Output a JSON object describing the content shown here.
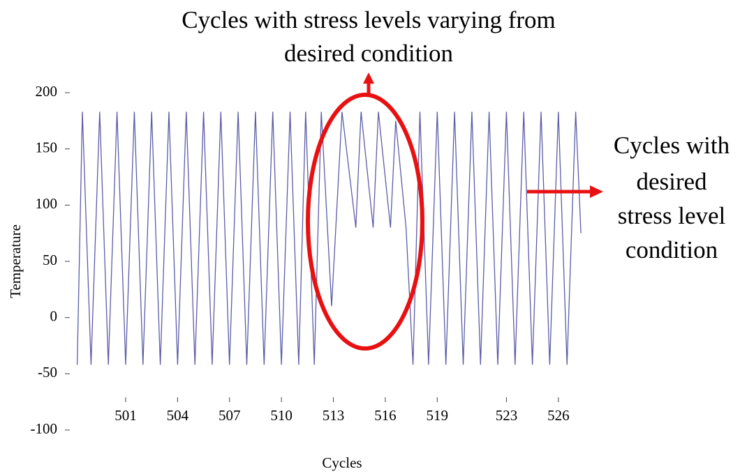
{
  "chart_data": {
    "type": "line",
    "title_lines": [
      "Cycles with stress levels varying from",
      "desired condition"
    ],
    "annotation_lines": [
      "Cycles with",
      "desired",
      "stress level",
      "condition"
    ],
    "x_label": "Cycles",
    "y_label": "Temperature",
    "series": [
      {
        "name": "Temperature",
        "color": "#5b5ba8",
        "x": [
          498.2,
          498.5,
          499,
          499.5,
          500,
          500.5,
          501,
          501.5,
          502,
          502.5,
          503,
          503.5,
          504,
          504.5,
          505,
          505.5,
          506,
          506.5,
          507,
          507.5,
          508,
          508.5,
          509,
          509.5,
          510,
          510.5,
          511,
          511.4,
          511.9,
          512.3,
          512.9,
          513.5,
          514.3,
          514.6,
          515.3,
          515.6,
          516.3,
          516.6,
          517.2,
          517.6,
          518,
          518.5,
          519,
          519.5,
          520,
          520.5,
          521,
          521.5,
          522,
          522.5,
          523,
          523.5,
          524,
          524.5,
          525,
          525.5,
          526,
          526.5,
          527,
          527.3
        ],
        "values": [
          -42,
          183,
          -42,
          183,
          -42,
          183,
          -42,
          183,
          -42,
          183,
          -42,
          183,
          -42,
          183,
          -42,
          183,
          -42,
          183,
          -42,
          183,
          -42,
          183,
          -42,
          183,
          -42,
          183,
          -42,
          183,
          -42,
          183,
          10,
          183,
          80,
          183,
          80,
          183,
          80,
          175,
          80,
          -42,
          183,
          -42,
          183,
          -42,
          183,
          -42,
          183,
          -42,
          183,
          -42,
          183,
          -42,
          183,
          -42,
          183,
          -42,
          183,
          -42,
          183,
          75
        ]
      }
    ],
    "xlim": [
      498,
      530
    ],
    "xticks": [
      501,
      504,
      507,
      510,
      513,
      516,
      519,
      523,
      526
    ],
    "ylim": [
      -100,
      200
    ],
    "yticks": [
      -100,
      -50,
      0,
      50,
      100,
      150,
      200
    ]
  }
}
